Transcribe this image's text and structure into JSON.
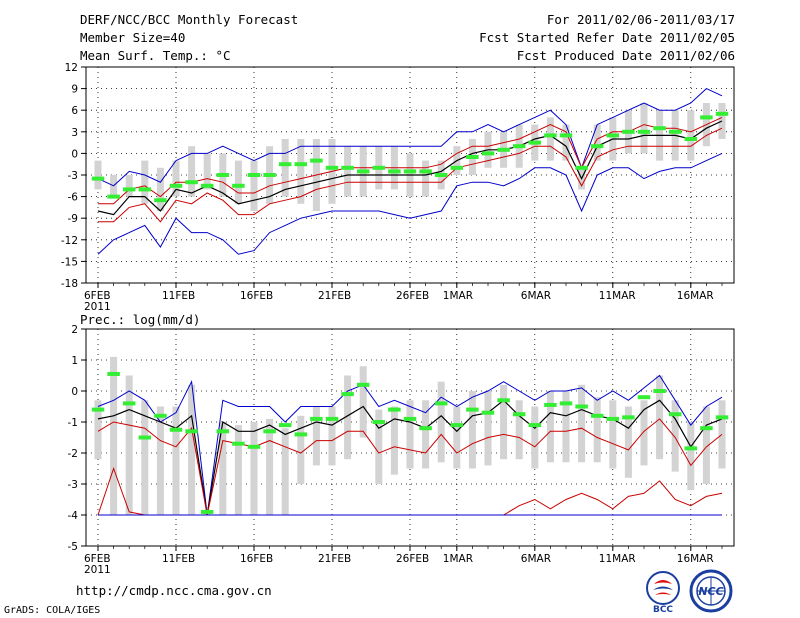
{
  "header": {
    "title": "DERF/NCC/BCC Monthly Forecast",
    "member_size": "Member Size=40",
    "variable": "Mean Surf. Temp.: °C",
    "period": "For 2011/02/06-2011/03/17",
    "fcst_started": "Fcst Started Refer Date 2011/02/05",
    "fcst_produced": "Fcst Produced Date 2011/02/06"
  },
  "footer": {
    "url": "http://cmdp.ncc.cma.gov.cn",
    "grads": "GrADS: COLA/IGES",
    "logo_bcc": "BCC",
    "logo_ncc": "NCC"
  },
  "colors": {
    "mean": "#000000",
    "inner": "#cc0000",
    "outer": "#0000cc",
    "box": "#d3d3d3",
    "median": "#33ee33"
  },
  "chart_data": [
    {
      "type": "line",
      "title": "Mean Surf. Temp.: °C",
      "x_days": 40,
      "x_ticks": [
        {
          "day": 0,
          "label": "6FEB"
        },
        {
          "day": 5,
          "label": "11FEB"
        },
        {
          "day": 10,
          "label": "16FEB"
        },
        {
          "day": 15,
          "label": "21FEB"
        },
        {
          "day": 20,
          "label": "26FEB"
        },
        {
          "day": 23,
          "label": "1MAR"
        },
        {
          "day": 28,
          "label": "6MAR"
        },
        {
          "day": 33,
          "label": "11MAR"
        },
        {
          "day": 38,
          "label": "16MAR"
        }
      ],
      "year_label": "2011",
      "ylim": [
        -18,
        12
      ],
      "y_ticks": [
        -18,
        -15,
        -12,
        -9,
        -6,
        -3,
        0,
        3,
        6,
        9,
        12
      ],
      "y_tick_labels": [
        "-18",
        "-15",
        "-12",
        "-9",
        "-6",
        "-3",
        "0",
        "3",
        "6",
        "9",
        "12"
      ],
      "series": [
        {
          "name": "outer_upper",
          "color": "outer",
          "values": [
            -3.5,
            -4.5,
            -2.5,
            -3,
            -4,
            -1,
            0,
            0,
            1,
            0,
            -1,
            0,
            0,
            1,
            1,
            1,
            1,
            1,
            1,
            1,
            1,
            1,
            1,
            3,
            3,
            4,
            3,
            4,
            5,
            6,
            4,
            -2,
            4,
            5,
            6,
            7,
            6,
            6,
            7,
            9,
            8,
            8
          ]
        },
        {
          "name": "inner_upper",
          "color": "inner",
          "values": [
            -7,
            -7,
            -5,
            -4.5,
            -6,
            -4,
            -4,
            -3.5,
            -4,
            -5.5,
            -5.5,
            -4.5,
            -4,
            -3.5,
            -3,
            -2.5,
            -2,
            -2,
            -2,
            -2,
            -2,
            -2,
            -1.5,
            0,
            1,
            1,
            1.5,
            2,
            3,
            4,
            3,
            -2,
            2,
            3,
            3,
            4,
            3.5,
            3.5,
            3,
            4,
            5,
            6
          ]
        },
        {
          "name": "mean",
          "color": "mean",
          "values": [
            -8,
            -8.5,
            -6,
            -6,
            -8,
            -5,
            -5.5,
            -4.5,
            -5.5,
            -7,
            -6.5,
            -6,
            -5,
            -4.5,
            -4,
            -3.5,
            -3,
            -3,
            -3,
            -3,
            -3,
            -3,
            -2.5,
            -1,
            0,
            0.5,
            0.5,
            1,
            2,
            2.5,
            1,
            -3.5,
            1,
            2,
            2,
            2.5,
            2.5,
            2.5,
            2,
            3.5,
            4.5,
            5
          ]
        },
        {
          "name": "inner_lower",
          "color": "inner",
          "values": [
            -9.5,
            -9.5,
            -7.5,
            -7,
            -9.5,
            -6.5,
            -7,
            -5.5,
            -6.5,
            -8.5,
            -8.5,
            -7,
            -6.5,
            -6,
            -5,
            -4.5,
            -4,
            -4,
            -4,
            -4,
            -4,
            -4,
            -4,
            -2,
            -1.5,
            -1,
            -0.5,
            0,
            1,
            1,
            -0.5,
            -4.5,
            -0.5,
            0.5,
            1,
            1,
            1,
            1,
            1,
            2.5,
            3.5,
            4
          ]
        },
        {
          "name": "outer_lower",
          "color": "outer",
          "values": [
            -14,
            -12,
            -11,
            -10,
            -13,
            -9,
            -11,
            -11,
            -12,
            -14,
            -13.5,
            -11,
            -10,
            -9,
            -8.5,
            -8,
            -8,
            -8,
            -8,
            -8.5,
            -9,
            -8.5,
            -8,
            -4.5,
            -4,
            -4,
            -4.5,
            -3.5,
            -2,
            -2,
            -3,
            -8,
            -3,
            -2,
            -2,
            -3.5,
            -2.5,
            -2,
            -2,
            -1,
            0,
            1
          ]
        }
      ],
      "boxes": [
        [
          -5,
          -1
        ],
        [
          -6,
          -3
        ],
        [
          -6,
          -3
        ],
        [
          -7,
          -1
        ],
        [
          -8,
          -2
        ],
        [
          -6,
          -1
        ],
        [
          -6,
          1
        ],
        [
          -5,
          0
        ],
        [
          -6,
          0
        ],
        [
          -7,
          -1
        ],
        [
          -8,
          -1
        ],
        [
          -7,
          1
        ],
        [
          -6,
          2
        ],
        [
          -7,
          2
        ],
        [
          -8,
          2
        ],
        [
          -7,
          2
        ],
        [
          -6,
          1
        ],
        [
          -6,
          1
        ],
        [
          -5,
          1
        ],
        [
          -5,
          1
        ],
        [
          -6,
          0
        ],
        [
          -6,
          -1
        ],
        [
          -5,
          -1
        ],
        [
          -3,
          1
        ],
        [
          -3,
          2
        ],
        [
          -2,
          3
        ],
        [
          -2,
          3
        ],
        [
          -2,
          4
        ],
        [
          -1,
          4
        ],
        [
          -1,
          5
        ],
        [
          -1,
          4
        ],
        [
          -5,
          -2
        ],
        [
          -1,
          4
        ],
        [
          -1,
          5
        ],
        [
          0,
          6
        ],
        [
          0,
          7
        ],
        [
          -1,
          6
        ],
        [
          -1,
          6
        ],
        [
          -1,
          6
        ],
        [
          1,
          7
        ],
        [
          2,
          7
        ],
        [
          3,
          7
        ]
      ],
      "medians": [
        -3.5,
        -6,
        -5,
        -5,
        -6.5,
        -4.5,
        -4,
        -4.5,
        -3,
        -4.5,
        -3,
        -3,
        -1.5,
        -1.5,
        -1,
        -2,
        -2,
        -2.5,
        -2,
        -2.5,
        -2.5,
        -2.5,
        -3,
        -2,
        -0.5,
        0,
        0.5,
        1,
        1.5,
        2.5,
        2.5,
        -2,
        1,
        2.5,
        3,
        3,
        3.5,
        3,
        2,
        5,
        5.5,
        6
      ]
    },
    {
      "type": "line",
      "title": "Prec.: log(mm/d)",
      "x_days": 40,
      "x_ticks": [
        {
          "day": 0,
          "label": "6FEB"
        },
        {
          "day": 5,
          "label": "11FEB"
        },
        {
          "day": 10,
          "label": "16FEB"
        },
        {
          "day": 15,
          "label": "21FEB"
        },
        {
          "day": 20,
          "label": "26FEB"
        },
        {
          "day": 23,
          "label": "1MAR"
        },
        {
          "day": 28,
          "label": "6MAR"
        },
        {
          "day": 33,
          "label": "11MAR"
        },
        {
          "day": 38,
          "label": "16MAR"
        }
      ],
      "year_label": "2011",
      "ylim": [
        -5,
        2
      ],
      "y_ticks": [
        -5,
        -4,
        -3,
        -2,
        -1,
        0,
        1,
        2
      ],
      "y_tick_labels": [
        "-5",
        "-4",
        "-3",
        "-2",
        "-1",
        "0",
        "1",
        "2"
      ],
      "series": [
        {
          "name": "outer_upper",
          "color": "outer",
          "values": [
            -0.5,
            -0.3,
            0,
            -0.3,
            -1,
            -0.7,
            0.3,
            -4,
            -0.3,
            -0.5,
            -0.5,
            -0.5,
            -1,
            -0.5,
            -0.5,
            -0.5,
            0,
            0.2,
            -0.5,
            -0.3,
            -0.5,
            -0.7,
            -0.2,
            -0.5,
            -0.2,
            0,
            0.3,
            0,
            -0.3,
            0,
            0,
            0.1,
            -0.3,
            0,
            -0.3,
            0.1,
            0.5,
            -0.3,
            -1.1,
            -0.5,
            -0.2
          ]
        },
        {
          "name": "mean",
          "color": "mean",
          "values": [
            -0.9,
            -0.8,
            -0.6,
            -0.8,
            -1,
            -1.2,
            -0.8,
            -4,
            -1,
            -1.3,
            -1.3,
            -1.1,
            -1.4,
            -1.2,
            -1,
            -1.1,
            -0.8,
            -0.5,
            -1.2,
            -0.9,
            -1,
            -1.2,
            -0.8,
            -1.3,
            -0.8,
            -0.7,
            -0.3,
            -0.8,
            -1.2,
            -0.7,
            -0.8,
            -0.6,
            -0.8,
            -0.9,
            -1.2,
            -0.6,
            -0.3,
            -0.9,
            -1.8,
            -1.1,
            -0.9
          ]
        },
        {
          "name": "inner_upper",
          "color": "inner",
          "values": [
            -1.3,
            -1.0,
            -1.1,
            -1.2,
            -1.6,
            -1.8,
            -1.2,
            -4,
            -1.6,
            -1.7,
            -1.8,
            -1.6,
            -1.8,
            -2,
            -1.6,
            -1.6,
            -1.3,
            -1.3,
            -2,
            -1.8,
            -1.9,
            -2,
            -1.4,
            -2,
            -1.7,
            -1.5,
            -1.4,
            -1.5,
            -1.8,
            -1.3,
            -1.3,
            -1.2,
            -1.5,
            -1.7,
            -1.9,
            -1.3,
            -0.9,
            -1.5,
            -2.4,
            -1.8,
            -1.4
          ]
        },
        {
          "name": "inner_lower",
          "color": "inner",
          "values": [
            -4,
            -2.5,
            -3.9,
            -4,
            -4,
            -4,
            -4,
            -4,
            -4,
            -4,
            -4,
            -4,
            -4,
            -4,
            -4,
            -4,
            -4,
            -4,
            -4,
            -4,
            -4,
            -4,
            -4,
            -4,
            -4,
            -4,
            -4,
            -3.7,
            -3.5,
            -3.8,
            -3.5,
            -3.3,
            -3.5,
            -3.8,
            -3.4,
            -3.3,
            -2.9,
            -3.5,
            -3.7,
            -3.4,
            -3.3
          ]
        },
        {
          "name": "outer_lower",
          "color": "outer",
          "values": [
            -4,
            -4,
            -4,
            -4,
            -4,
            -4,
            -4,
            -4,
            -4,
            -4,
            -4,
            -4,
            -4,
            -4,
            -4,
            -4,
            -4,
            -4,
            -4,
            -4,
            -4,
            -4,
            -4,
            -4,
            -4,
            -4,
            -4,
            -4,
            -4,
            -4,
            -4,
            -4,
            -4,
            -4,
            -4,
            -4,
            -4,
            -4,
            -4,
            -4,
            -4
          ]
        }
      ],
      "boxes": [
        [
          -2.2,
          -0.3
        ],
        [
          -4,
          1.1
        ],
        [
          -4,
          0.5
        ],
        [
          -4,
          -0.3
        ],
        [
          -4,
          -0.5
        ],
        [
          -4,
          -0.5
        ],
        [
          -4,
          0.2
        ],
        [
          -4,
          -3.9
        ],
        [
          -4,
          -1
        ],
        [
          -4,
          -1.1
        ],
        [
          -4,
          -1
        ],
        [
          -4,
          -0.9
        ],
        [
          -4,
          -1.2
        ],
        [
          -3,
          -0.8
        ],
        [
          -2.4,
          -0.5
        ],
        [
          -2.4,
          -0.5
        ],
        [
          -2.2,
          0.5
        ],
        [
          -1.5,
          0.8
        ],
        [
          -3,
          -0.6
        ],
        [
          -2.7,
          -0.5
        ],
        [
          -2.5,
          -0.3
        ],
        [
          -2.5,
          -0.3
        ],
        [
          -2.3,
          0.3
        ],
        [
          -2.5,
          -0.5
        ],
        [
          -2.5,
          0
        ],
        [
          -2.4,
          0
        ],
        [
          -2.2,
          0.2
        ],
        [
          -2.2,
          -0.3
        ],
        [
          -2.5,
          -0.5
        ],
        [
          -2.3,
          0
        ],
        [
          -2.3,
          0
        ],
        [
          -2.3,
          0.2
        ],
        [
          -2.3,
          -0.2
        ],
        [
          -2.5,
          -0.3
        ],
        [
          -2.8,
          -0.5
        ],
        [
          -2.4,
          -0.3
        ],
        [
          -2.2,
          0.5
        ],
        [
          -2.6,
          -0.3
        ],
        [
          -3.2,
          -1
        ],
        [
          -3,
          -0.5
        ],
        [
          -2.5,
          -0.3
        ]
      ],
      "medians": [
        -0.6,
        0.55,
        -0.4,
        -1.5,
        -0.8,
        -1.25,
        -1.3,
        -3.9,
        -1.3,
        -1.7,
        -1.8,
        -1.3,
        -1.1,
        -1.4,
        -0.9,
        -0.9,
        -0.1,
        0.2,
        -1,
        -0.6,
        -0.9,
        -1.2,
        -0.4,
        -1.1,
        -0.6,
        -0.7,
        -0.3,
        -0.75,
        -1.1,
        -0.45,
        -0.4,
        -0.5,
        -0.8,
        -0.9,
        -0.85,
        -0.2,
        0,
        -0.75,
        -1.85,
        -1.2,
        -0.85
      ]
    }
  ]
}
